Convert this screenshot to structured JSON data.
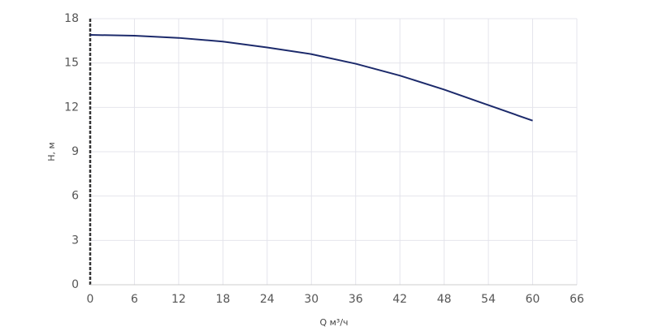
{
  "chart_data": {
    "type": "line",
    "x_label": "Q м³/ч",
    "y_label": "H, м",
    "x": [
      0,
      6,
      12,
      18,
      24,
      30,
      36,
      42,
      48,
      54,
      60
    ],
    "series": [
      {
        "name": "H",
        "color": "#1c2a6b",
        "values": [
          16.9,
          16.85,
          16.7,
          16.45,
          16.05,
          15.6,
          14.95,
          14.15,
          13.2,
          12.15,
          11.1
        ]
      }
    ],
    "xlim": [
      0,
      66
    ],
    "xticks": [
      0,
      6,
      12,
      18,
      24,
      30,
      36,
      42,
      48,
      54,
      60,
      66
    ],
    "ylim": [
      0,
      18
    ],
    "yticks": [
      0,
      3,
      6,
      9,
      12,
      15,
      18
    ],
    "grid": true
  }
}
